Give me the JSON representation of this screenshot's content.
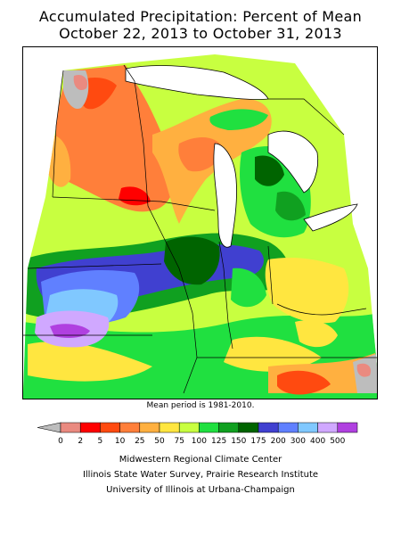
{
  "title": {
    "line1": "Accumulated Precipitation: Percent of Mean",
    "line2": "October 22, 2013 to October 31, 2013"
  },
  "note": "Mean period is 1981-2010.",
  "legend": {
    "labels": [
      "0",
      "2",
      "5",
      "10",
      "25",
      "50",
      "75",
      "100",
      "125",
      "150",
      "175",
      "200",
      "300",
      "400",
      "500"
    ],
    "colors": [
      "#bdbdbd",
      "#ea8a80",
      "#ff0000",
      "#ff4a10",
      "#ff7f3a",
      "#ffb040",
      "#ffe640",
      "#c8ff40",
      "#20e040",
      "#10a020",
      "#006400",
      "#4040d0",
      "#6080ff",
      "#80c8ff",
      "#d0a8ff",
      "#b040e0"
    ]
  },
  "credits": {
    "line1": "Midwestern Regional Climate Center",
    "line2": "Illinois State Water Survey, Prairie Research Institute",
    "line3": "University of Illinois at Urbana-Champaign"
  },
  "map": {
    "region": "Midwest United States",
    "fill_colors": {
      "gray": "#bdbdbd",
      "salmon": "#ea8a80",
      "red": "#ff0000",
      "orange_red": "#ff4a10",
      "orange": "#ff7f3a",
      "light_orange": "#ffb040",
      "yellow": "#ffe640",
      "yellow_green": "#c8ff40",
      "green": "#20e040",
      "mid_green": "#10a020",
      "dark_green": "#006400",
      "blue": "#4040d0",
      "med_blue": "#6080ff",
      "light_blue": "#80c8ff",
      "lavender": "#d0a8ff",
      "purple": "#b040e0"
    }
  }
}
